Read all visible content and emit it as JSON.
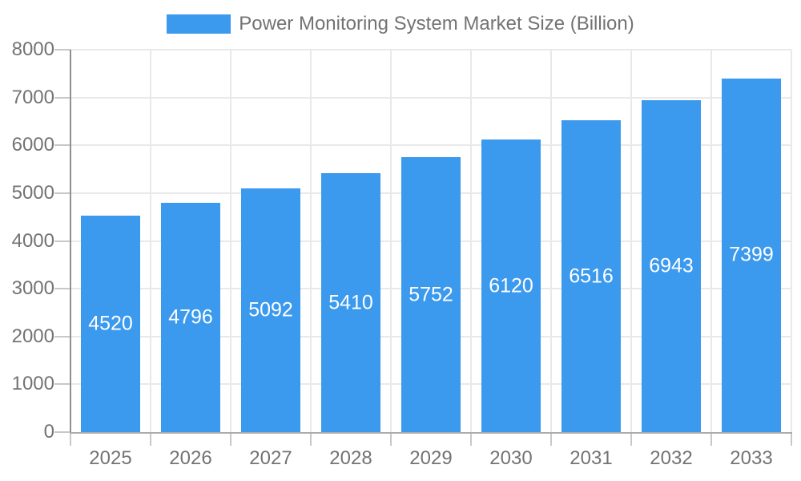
{
  "chart_data": {
    "type": "bar",
    "title": "Power Monitoring System Market Size (Billion)",
    "categories": [
      "2025",
      "2026",
      "2027",
      "2028",
      "2029",
      "2030",
      "2031",
      "2032",
      "2033"
    ],
    "values": [
      4520,
      4796,
      5092,
      5410,
      5752,
      6120,
      6516,
      6943,
      7399
    ],
    "xlabel": "",
    "ylabel": "",
    "ylim": [
      0,
      8000
    ],
    "yticks": [
      0,
      1000,
      2000,
      3000,
      4000,
      5000,
      6000,
      7000,
      8000
    ],
    "grid": true,
    "legend_position": "top",
    "colors": {
      "bar": "#3B99EE",
      "bar_value_label": "#FFFFFF",
      "axis_label_text": "#737373",
      "title_text": "#737373",
      "gridline": "#E9E9E9",
      "axis_line_x": "#ACACAC",
      "axis_line_y": "#8F8F8F",
      "tick": "#C8C8C8",
      "background": "#FFFFFF"
    }
  }
}
